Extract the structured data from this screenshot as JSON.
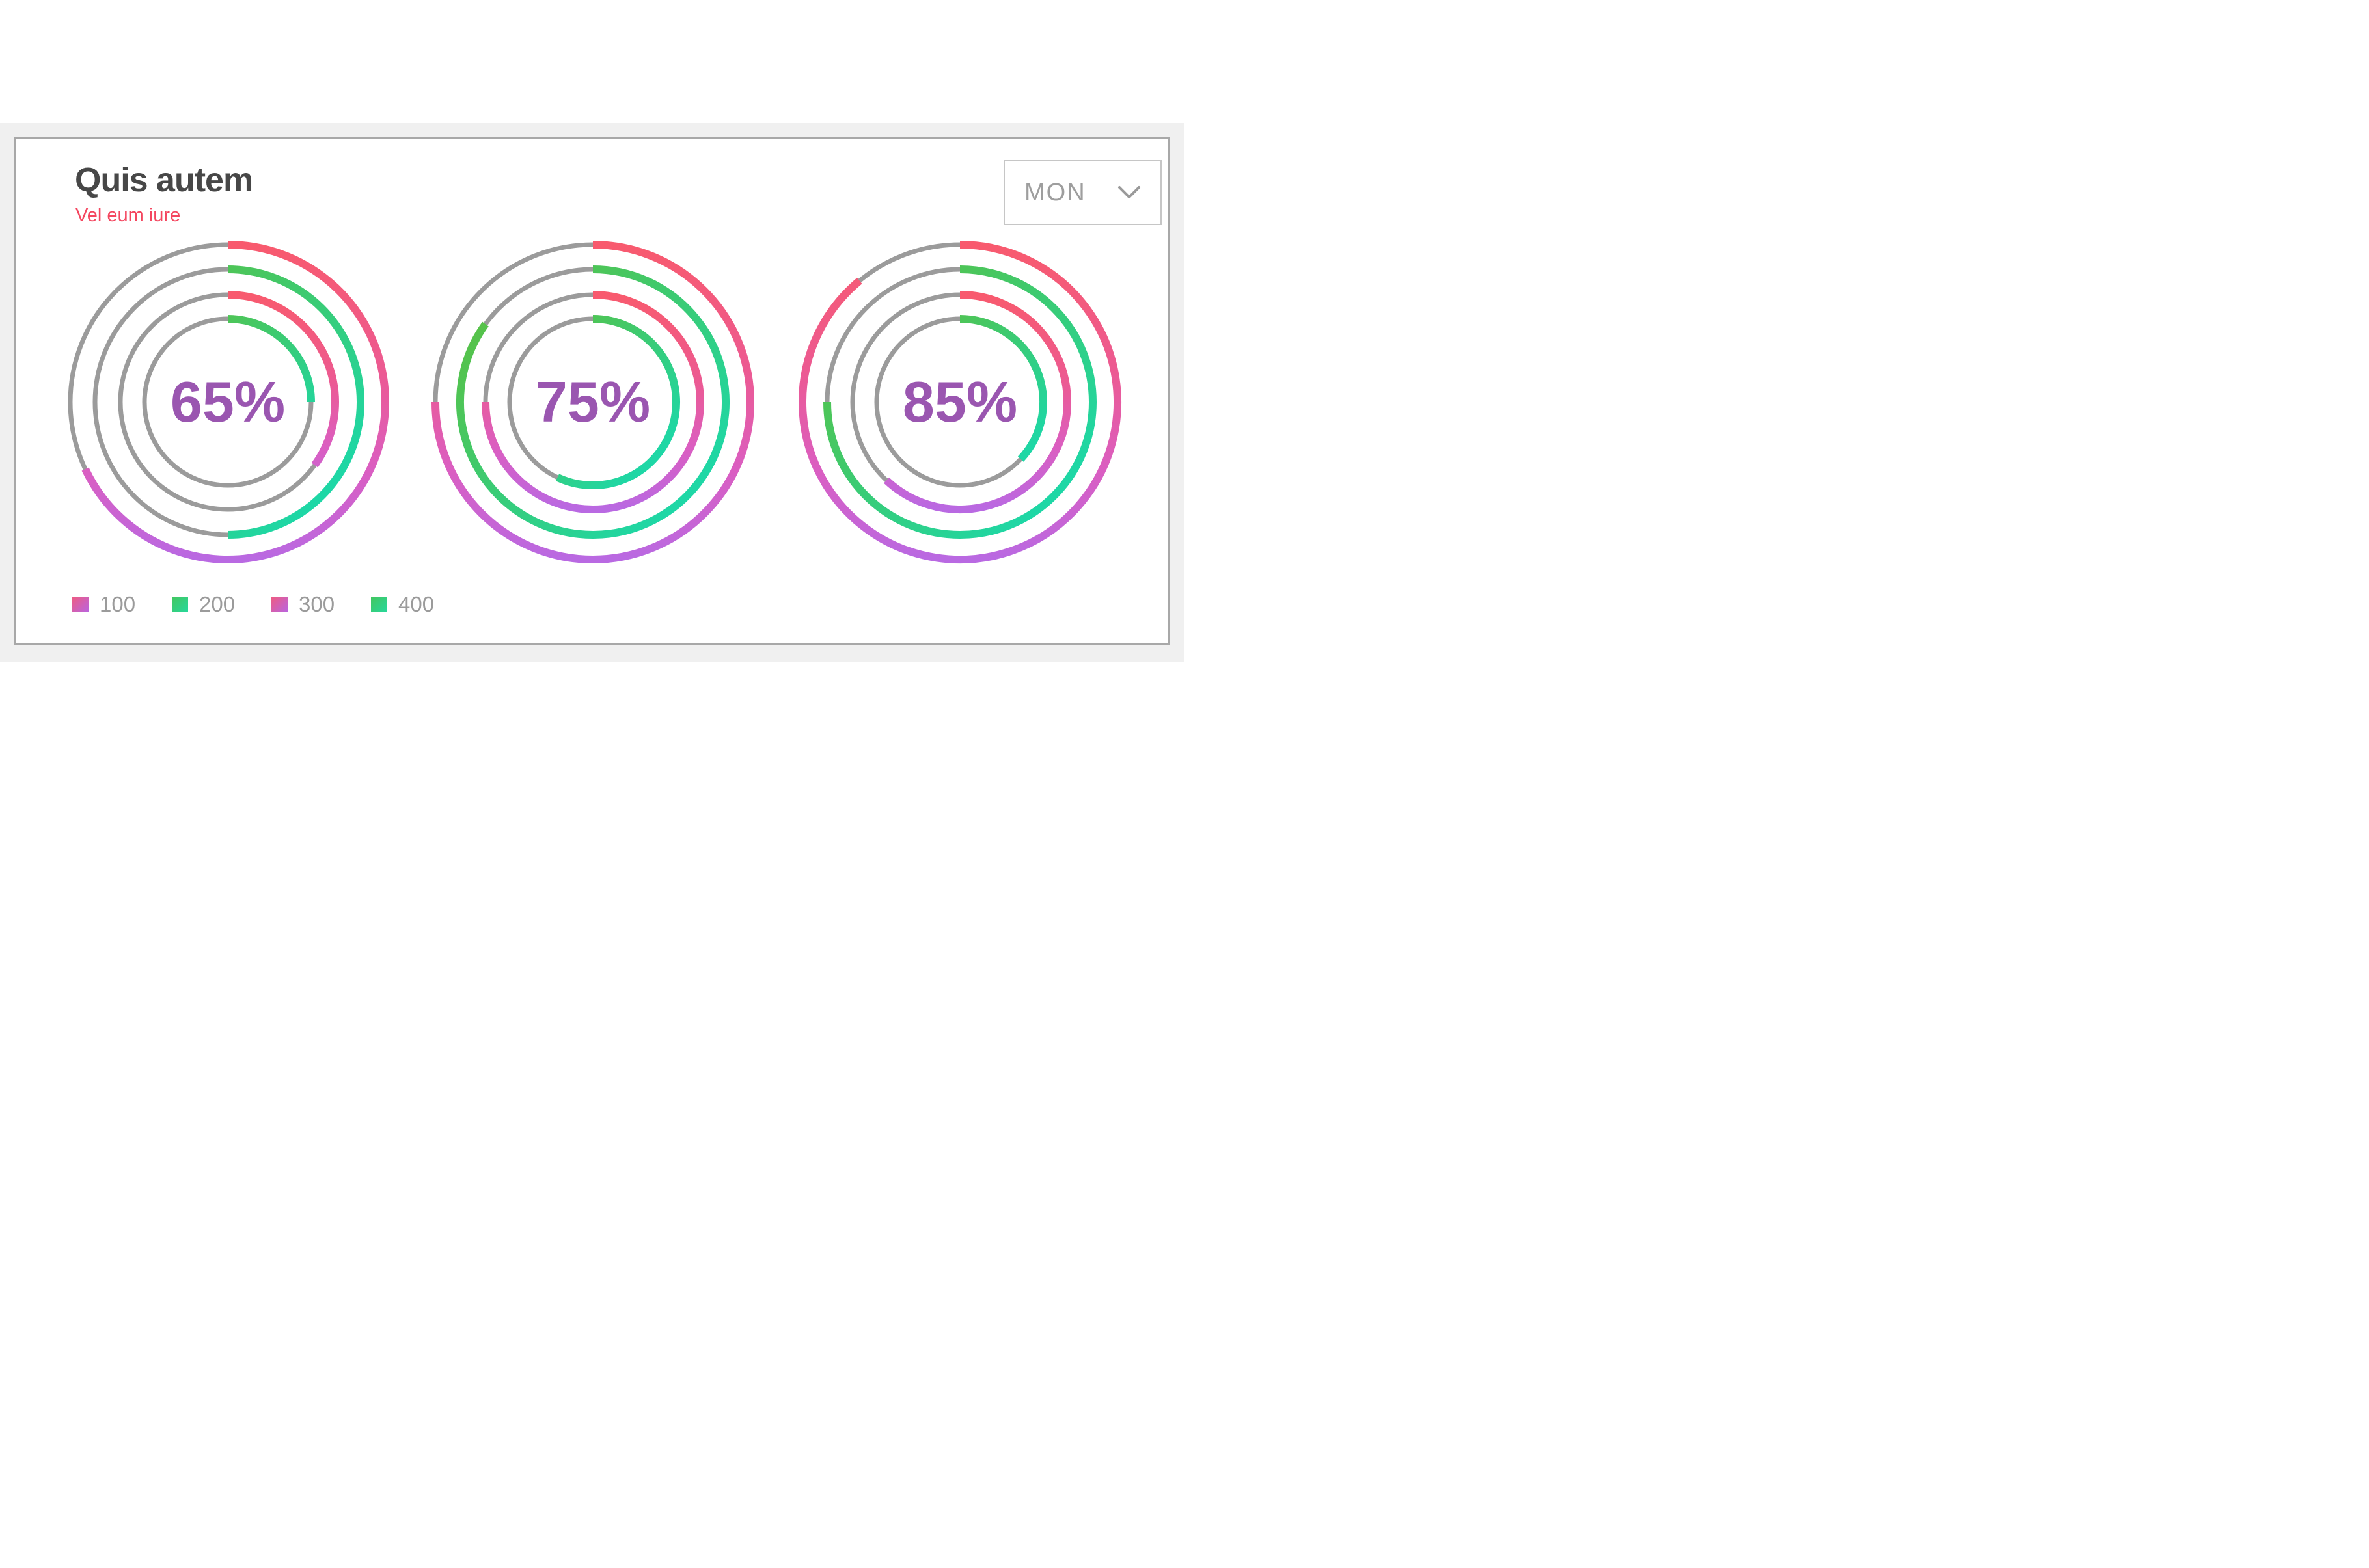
{
  "chart_data": {
    "type": "radial-progress",
    "title": "Quis autem",
    "subtitle": "Vel eum iure",
    "period_selector": "MON",
    "legend": [
      {
        "label": "100",
        "palette": "pink"
      },
      {
        "label": "200",
        "palette": "green"
      },
      {
        "label": "300",
        "palette": "pink"
      },
      {
        "label": "400",
        "palette": "green"
      }
    ],
    "charts": [
      {
        "center_label": "65%",
        "value_pct": 65,
        "rings": [
          {
            "palette": "pink",
            "percent": 68
          },
          {
            "palette": "green",
            "percent": 50
          },
          {
            "palette": "pink",
            "percent": 35
          },
          {
            "palette": "green",
            "percent": 25
          }
        ]
      },
      {
        "center_label": "75%",
        "value_pct": 75,
        "rings": [
          {
            "palette": "pink",
            "percent": 75
          },
          {
            "palette": "green",
            "percent": 85
          },
          {
            "palette": "pink",
            "percent": 75
          },
          {
            "palette": "green",
            "percent": 57
          }
        ]
      },
      {
        "center_label": "85%",
        "value_pct": 85,
        "rings": [
          {
            "palette": "pink",
            "percent": 89
          },
          {
            "palette": "green",
            "percent": 75
          },
          {
            "palette": "pink",
            "percent": 62
          },
          {
            "palette": "green",
            "percent": 37
          }
        ]
      }
    ],
    "layout": {
      "start_angle": "top",
      "direction": "clockwise",
      "ring_radii": [
        242,
        204,
        165,
        128
      ],
      "track_width": 7,
      "arc_width": 12,
      "legend_position": "bottom-left"
    },
    "colors": {
      "track": "#9b9b9b",
      "percent_text": "#9a56b0",
      "title_text": "#474747",
      "subtitle_text": "#f4465f",
      "legend_text": "#9b9b9b",
      "card_border": "#a8a8a8",
      "band_bg": "#f0f0f0",
      "dropdown_border": "#c6c6c6",
      "dropdown_text": "#9e9e9e",
      "chevron": "#9a9a9a",
      "pink_stops": [
        [
          0,
          "#f85a6e"
        ],
        [
          0.4,
          "#ec5a92"
        ],
        [
          0.72,
          "#da5ec2"
        ],
        [
          1,
          "#b969e2"
        ]
      ],
      "green_stops": [
        [
          0,
          "#56c24a"
        ],
        [
          0.5,
          "#38cc78"
        ],
        [
          1,
          "#1ed7a6"
        ]
      ],
      "pink_swatch": [
        "#ee5b82",
        "#b965e0"
      ],
      "green_swatch": [
        "#43c65f",
        "#27d89c"
      ]
    }
  }
}
